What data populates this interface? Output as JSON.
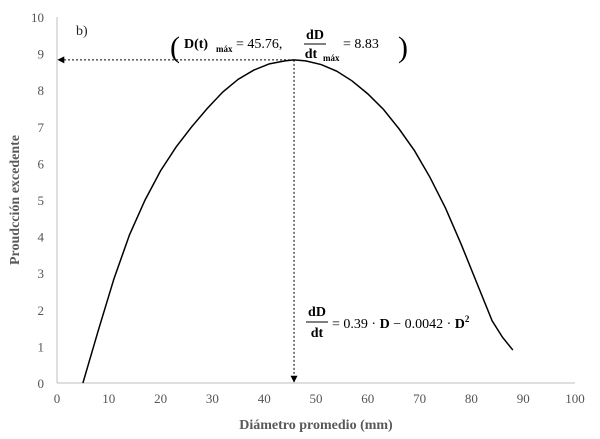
{
  "chart_data": {
    "type": "line",
    "panel_label": "b)",
    "xlabel": "Diámetro promedio (mm)",
    "ylabel": "Proudcción excedente",
    "xlim": [
      0,
      100
    ],
    "ylim": [
      0,
      10
    ],
    "x_ticks": [
      "0",
      "10",
      "20",
      "30",
      "40",
      "50",
      "60",
      "70",
      "80",
      "90",
      "100"
    ],
    "y_ticks": [
      "0",
      "1",
      "2",
      "3",
      "4",
      "5",
      "6",
      "7",
      "8",
      "9",
      "10"
    ],
    "grid": false,
    "series": [
      {
        "color": "#000000",
        "x": [
          5,
          8,
          11,
          14,
          17,
          20,
          23,
          26,
          29,
          32,
          35,
          38,
          41,
          44,
          45.76,
          48,
          51,
          54,
          57,
          60,
          63,
          66,
          69,
          72,
          75,
          78,
          81,
          84,
          86,
          88
        ],
        "y": [
          0.0,
          1.45,
          2.85,
          4.05,
          5.0,
          5.8,
          6.45,
          7.0,
          7.5,
          7.95,
          8.3,
          8.55,
          8.72,
          8.8,
          8.83,
          8.8,
          8.7,
          8.52,
          8.25,
          7.9,
          7.48,
          6.95,
          6.35,
          5.62,
          4.78,
          3.8,
          2.75,
          1.7,
          1.25,
          0.9
        ]
      }
    ],
    "annotations": {
      "max_point": {
        "x": 45.76,
        "y": 8.83
      },
      "max_equation": {
        "open_paren": "(",
        "D_t": "D(t)",
        "sub_max": "máx",
        "equals_1": " = 45.76,",
        "frac_num": "dD",
        "frac_den": "dt",
        "sub_max_2": "máx",
        "equals_2": " = 8.83",
        "close_paren": ")"
      },
      "model_equation": {
        "frac_num": "dD",
        "frac_den": "dt",
        "rhs_1": " = 0.39 · ",
        "D1": "D",
        "rhs_2": " − 0.0042 · ",
        "D2": "D",
        "exp": "2"
      }
    }
  }
}
